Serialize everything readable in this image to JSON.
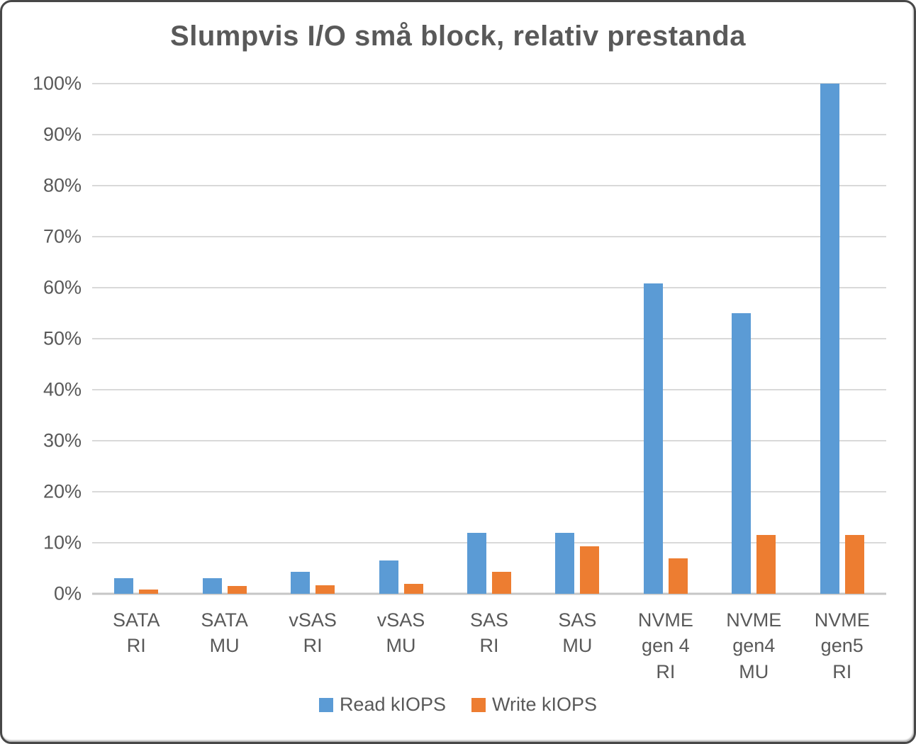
{
  "chart_data": {
    "type": "bar",
    "title": "Slumpvis I/O små block, relativ prestanda",
    "categories": [
      "SATA\nRI",
      "SATA\nMU",
      "vSAS\nRI",
      "vSAS\nMU",
      "SAS\nRI",
      "SAS\nMU",
      "NVME\ngen 4\nRI",
      "NVME\ngen4\nMU",
      "NVME\ngen5\nRI"
    ],
    "series": [
      {
        "name": "Read kIOPS",
        "color": "#5B9BD5",
        "values": [
          3.1,
          3.1,
          4.3,
          6.5,
          12.0,
          12.0,
          60.8,
          55.0,
          100.0
        ]
      },
      {
        "name": "Write kIOPS",
        "color": "#ED7D31",
        "values": [
          0.9,
          1.5,
          1.6,
          2.0,
          4.3,
          9.3,
          7.0,
          11.5,
          11.5
        ]
      }
    ],
    "xlabel": "",
    "ylabel": "",
    "ylim": [
      0,
      100
    ],
    "y_ticks": [
      0,
      10,
      20,
      30,
      40,
      50,
      60,
      70,
      80,
      90,
      100
    ],
    "y_tick_labels": [
      "0%",
      "10%",
      "20%",
      "30%",
      "40%",
      "50%",
      "60%",
      "70%",
      "80%",
      "90%",
      "100%"
    ],
    "grid": true,
    "legend_position": "bottom"
  },
  "colors": {
    "title_text": "#595959",
    "axis_text": "#595959",
    "gridline": "#D9D9D9",
    "axis_line": "#C6C6C6",
    "background": "#FFFFFF",
    "frame_border": "#474747"
  }
}
